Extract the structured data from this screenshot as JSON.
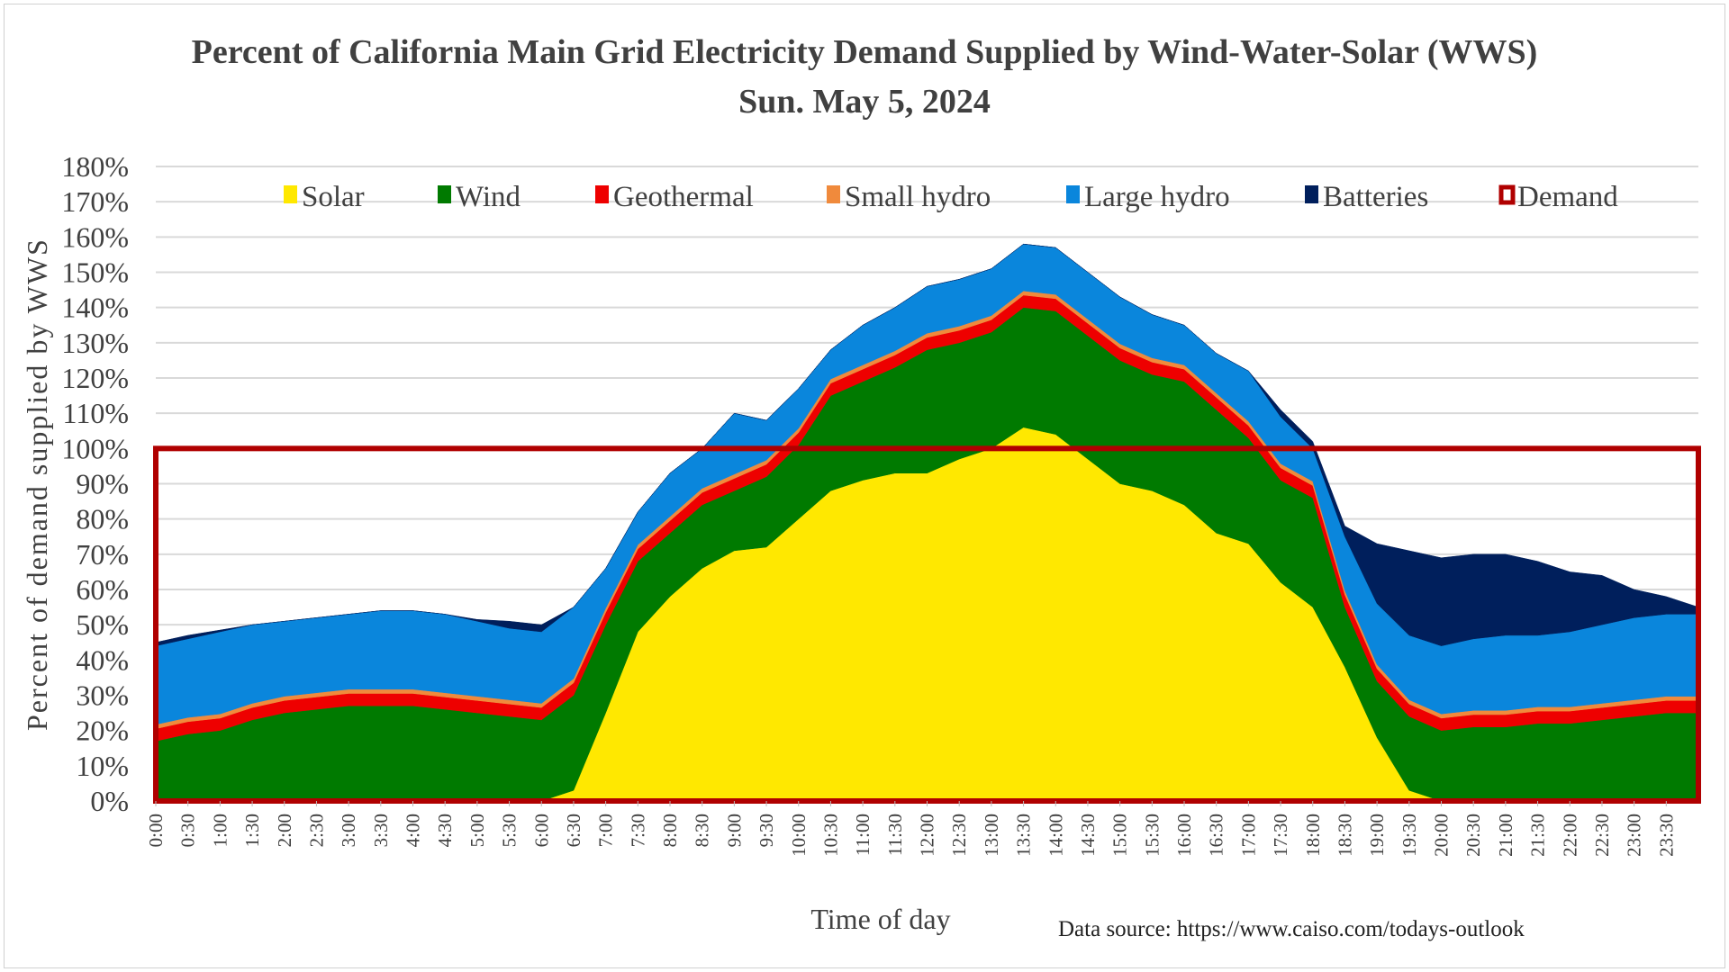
{
  "chart_data": {
    "type": "area",
    "stacked": true,
    "title": "Percent of California Main Grid Electricity Demand Supplied by Wind-Water-Solar (WWS)",
    "subtitle": "Sun. May 5, 2024",
    "xlabel": "Time of day",
    "ylabel": "Percent of demand supplied by WWS",
    "source": "Data source: https://www.caiso.com/todays-outlook",
    "ylim": [
      0,
      180
    ],
    "y_ticks": [
      "0%",
      "10%",
      "20%",
      "30%",
      "40%",
      "50%",
      "60%",
      "70%",
      "80%",
      "90%",
      "100%",
      "110%",
      "120%",
      "130%",
      "140%",
      "150%",
      "160%",
      "170%",
      "180%"
    ],
    "x_ticks": [
      "0:00",
      "0:30",
      "1:00",
      "1:30",
      "2:00",
      "2:30",
      "3:00",
      "3:30",
      "4:00",
      "4:30",
      "5:00",
      "5:30",
      "6:00",
      "6:30",
      "7:00",
      "7:30",
      "8:00",
      "8:30",
      "9:00",
      "9:30",
      "10:00",
      "10:30",
      "11:00",
      "11:30",
      "12:00",
      "12:30",
      "13:00",
      "13:30",
      "14:00",
      "14:30",
      "15:00",
      "15:30",
      "16:00",
      "16:30",
      "17:00",
      "17:30",
      "18:00",
      "18:30",
      "19:00",
      "19:30",
      "20:00",
      "20:30",
      "21:00",
      "21:30",
      "22:00",
      "22:30",
      "23:00",
      "23:30"
    ],
    "grid": true,
    "legend_placement": "top",
    "demand_percent": 100,
    "series": [
      {
        "name": "Solar",
        "color": "#ffe800",
        "values": [
          0,
          0,
          0,
          0,
          0,
          0,
          0,
          0,
          0,
          0,
          0,
          0,
          0,
          3,
          25,
          48,
          58,
          66,
          71,
          72,
          80,
          88,
          91,
          93,
          93,
          97,
          100,
          106,
          104,
          97,
          90,
          88,
          84,
          76,
          73,
          62,
          55,
          38,
          18,
          3,
          0,
          0,
          0,
          0,
          0,
          0,
          0,
          0,
          0
        ]
      },
      {
        "name": "Wind",
        "color": "#007a00",
        "values": [
          17,
          19,
          20,
          23,
          25,
          26,
          27,
          27,
          27,
          26,
          25,
          24,
          23,
          27,
          25,
          20,
          18,
          18,
          17,
          20,
          21,
          27,
          28,
          30,
          35,
          33,
          33,
          34,
          35,
          35,
          35,
          33,
          35,
          35,
          30,
          29,
          31,
          17,
          16,
          21,
          20,
          21,
          21,
          22,
          22,
          23,
          24,
          25,
          25
        ]
      },
      {
        "name": "Geothermal",
        "color": "#ee0000",
        "values": [
          3.5,
          3.5,
          3.5,
          3.5,
          3.5,
          3.5,
          3.5,
          3.5,
          3.5,
          3.5,
          3.5,
          3.5,
          3.5,
          3.5,
          3.5,
          3.5,
          3.5,
          3.5,
          3.5,
          3.5,
          3.5,
          3.5,
          3.5,
          3.5,
          3.5,
          3.5,
          3.5,
          3.5,
          3.5,
          3.5,
          3.5,
          3.5,
          3.5,
          3.5,
          3.5,
          3.5,
          3.5,
          3.5,
          3.5,
          3.5,
          3.5,
          3.5,
          3.5,
          3.5,
          3.5,
          3.5,
          3.5,
          3.5,
          3.5
        ]
      },
      {
        "name": "Small hydro",
        "color": "#f08a3c",
        "values": [
          1.2,
          1.2,
          1.2,
          1.2,
          1.2,
          1.2,
          1.2,
          1.2,
          1.2,
          1.2,
          1.2,
          1.2,
          1.2,
          1.2,
          1.2,
          1.2,
          1.2,
          1.2,
          1.2,
          1.2,
          1.2,
          1.2,
          1.2,
          1.2,
          1.2,
          1.2,
          1.2,
          1.2,
          1.2,
          1.2,
          1.2,
          1.2,
          1.2,
          1.2,
          1.2,
          1.2,
          1.2,
          1.2,
          1.2,
          1.2,
          1.2,
          1.2,
          1.2,
          1.2,
          1.2,
          1.2,
          1.2,
          1.2,
          1.2
        ]
      },
      {
        "name": "Large hydro",
        "color": "#0a86dc",
        "values": [
          22.3,
          22.3,
          23.3,
          22.3,
          21.3,
          21.3,
          21.3,
          22.3,
          22.3,
          22.3,
          21.3,
          20.3,
          20.3,
          20.3,
          11.3,
          9.3,
          12.3,
          11.3,
          17.3,
          11.3,
          11.3,
          8.3,
          11.3,
          12.3,
          13.3,
          13.3,
          13.3,
          13.3,
          13.3,
          13.3,
          13.3,
          12.3,
          11.3,
          11.3,
          14.3,
          13.3,
          9.3,
          15.3,
          17.3,
          18.3,
          19.3,
          20.3,
          21.3,
          20.3,
          21.3,
          22.3,
          23.3,
          23.3,
          23.3
        ]
      },
      {
        "name": "Batteries",
        "color": "#001f5c",
        "values": [
          1,
          1,
          0.5,
          0,
          0,
          0,
          0,
          0,
          0,
          0,
          0.5,
          2,
          2,
          0,
          0,
          0,
          0,
          0,
          0,
          0,
          0,
          0,
          0,
          0,
          0,
          0,
          0,
          0,
          0,
          0,
          0,
          0,
          0,
          0,
          0,
          2,
          2,
          3,
          17,
          24,
          25,
          24,
          23,
          21,
          17,
          14,
          8,
          5,
          2
        ]
      }
    ],
    "demand": {
      "name": "Demand",
      "color": "#b00000"
    }
  }
}
